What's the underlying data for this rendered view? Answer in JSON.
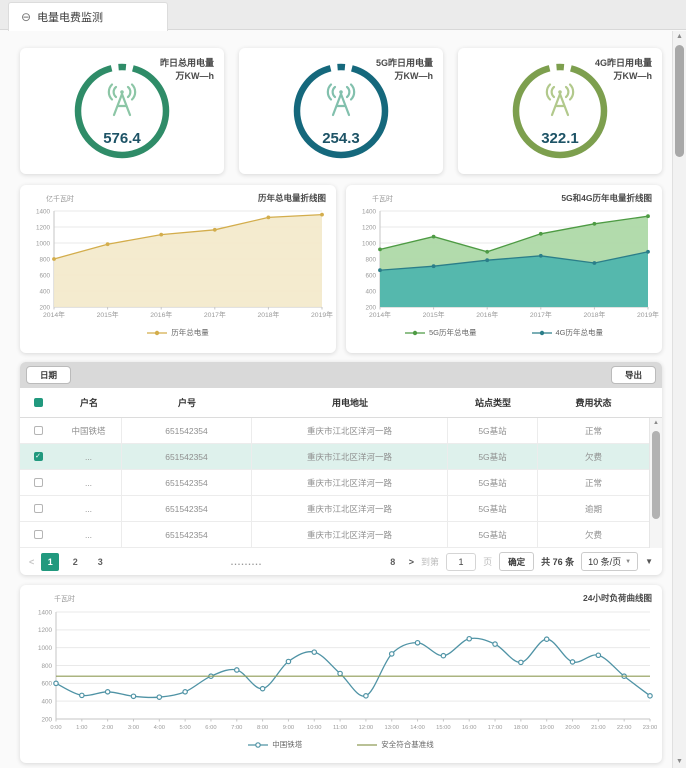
{
  "tab": {
    "icon": "⊖",
    "label": "电量电费监测"
  },
  "icons": {
    "up": "▲",
    "down": "▼"
  },
  "colors": {
    "accent": "#21997e",
    "selected_row_bg": "#def1ec",
    "kpi_value_text": "#1d5366"
  },
  "cards": [
    {
      "title": "昨日总用电量",
      "unit": "万KW—h",
      "value": "576.4",
      "ring_color": "#2f8c68",
      "icon_color": "#8cc6a6"
    },
    {
      "title": "5G昨日用电量",
      "unit": "万KW—h",
      "value": "254.3",
      "ring_color": "#15687c",
      "icon_color": "#82c0ad"
    },
    {
      "title": "4G昨日用电量",
      "unit": "万KW—h",
      "value": "322.1",
      "ring_color": "#7d9f4e",
      "icon_color": "#b2c98c"
    }
  ],
  "chart_data": [
    {
      "type": "area",
      "title": "历年总电量折线图",
      "y_unit": "亿千瓦时",
      "categories": [
        "2014年",
        "2015年",
        "2016年",
        "2017年",
        "2018年",
        "2019年"
      ],
      "ylim": [
        200,
        1400
      ],
      "ystep": 200,
      "grid": true,
      "legend_position": "bottom",
      "series": [
        {
          "name": "历年总电量",
          "color": "#d3ad4c",
          "fill": "#f3e9cb",
          "marker": "dot",
          "values": [
            800,
            985,
            1105,
            1165,
            1320,
            1355
          ]
        }
      ]
    },
    {
      "type": "area",
      "title": "5G和4G历年电量折线图",
      "y_unit": "千瓦时",
      "categories": [
        "2014年",
        "2015年",
        "2016年",
        "2017年",
        "2018年",
        "2019年"
      ],
      "ylim": [
        200,
        1400
      ],
      "ystep": 200,
      "grid": true,
      "legend_position": "bottom",
      "series": [
        {
          "name": "5G历年总电量",
          "color": "#4e9b44",
          "fill": "#abd8a5",
          "marker": "dot",
          "values": [
            920,
            1080,
            890,
            1115,
            1240,
            1335
          ]
        },
        {
          "name": "4G历年总电量",
          "color": "#2b7e89",
          "fill": "#4db5ac",
          "marker": "dot",
          "values": [
            660,
            710,
            785,
            840,
            750,
            890
          ]
        }
      ]
    },
    {
      "type": "line",
      "title": "24小时负荷曲线图",
      "y_unit": "千瓦时",
      "smooth": true,
      "categories": [
        "0:00",
        "1:00",
        "2:00",
        "3:00",
        "4:00",
        "5:00",
        "6:00",
        "7:00",
        "8:00",
        "9:00",
        "10:00",
        "11:00",
        "12:00",
        "13:00",
        "14:00",
        "15:00",
        "16:00",
        "17:00",
        "18:00",
        "19:00",
        "20:00",
        "21:00",
        "22:00",
        "23:00"
      ],
      "ylim": [
        200,
        1400
      ],
      "ystep": 200,
      "grid": true,
      "legend_position": "bottom",
      "series": [
        {
          "name": "中国铁塔",
          "color": "#4f93a5",
          "marker": "open",
          "values": [
            600,
            465,
            505,
            455,
            445,
            505,
            680,
            750,
            540,
            845,
            950,
            710,
            460,
            930,
            1055,
            910,
            1100,
            1040,
            835,
            1095,
            840,
            915,
            680,
            460
          ]
        }
      ],
      "baseline": {
        "name": "安全符合基准线",
        "color": "#8f9c57",
        "value": 680
      }
    }
  ],
  "table": {
    "date_button": "日期",
    "export_button": "导出",
    "columns": [
      "户名",
      "户号",
      "用电地址",
      "站点类型",
      "费用状态"
    ],
    "rows": [
      {
        "checked": false,
        "selected": false,
        "name": "中国铁塔",
        "account": "651542354",
        "address": "重庆市江北区洋河一路",
        "site_type": "5G基站",
        "status": "正常"
      },
      {
        "checked": true,
        "selected": true,
        "name": "...",
        "account": "651542354",
        "address": "重庆市江北区洋河一路",
        "site_type": "5G基站",
        "status": "欠费"
      },
      {
        "checked": false,
        "selected": false,
        "name": "...",
        "account": "651542354",
        "address": "重庆市江北区洋河一路",
        "site_type": "5G基站",
        "status": "正常"
      },
      {
        "checked": false,
        "selected": false,
        "name": "...",
        "account": "651542354",
        "address": "重庆市江北区洋河一路",
        "site_type": "5G基站",
        "status": "逾期"
      },
      {
        "checked": false,
        "selected": false,
        "name": "...",
        "account": "651542354",
        "address": "重庆市江北区洋河一路",
        "site_type": "5G基站",
        "status": "欠费"
      }
    ],
    "pagination": {
      "prev_icon": "<",
      "pages": [
        "1",
        "2",
        "3"
      ],
      "active_page": "1",
      "dots": ".........",
      "last_page": "8",
      "next_icon": ">",
      "goto_label": "到第",
      "goto_value": "1",
      "goto_unit": "页",
      "confirm_label": "确定",
      "total_label": "共 76 条",
      "page_size": "10 条/页",
      "caret_icon": "▼"
    }
  }
}
